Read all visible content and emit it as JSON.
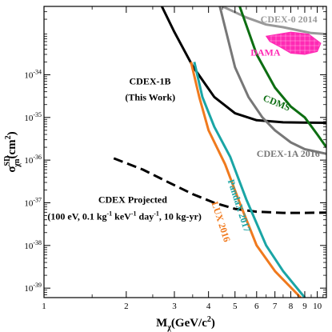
{
  "chart_data": {
    "type": "line",
    "xlabel": "M",
    "xlabel_sub": "χ",
    "xlabel_units": "(GeV/c",
    "xlabel_units_sup": "2",
    "xlabel_units_close": ")",
    "ylabel": "σ",
    "ylabel_sup": "SD",
    "ylabel_sub": "χn",
    "ylabel_units": "(cm",
    "ylabel_units_sup": "2",
    "ylabel_units_close": ")",
    "x_scale": "log",
    "y_scale": "log",
    "xlim": [
      1,
      10.8
    ],
    "ylim": [
      6e-40,
      4e-33
    ],
    "grid": false,
    "x_major_ticks": [
      {
        "value": 1,
        "label": "1"
      },
      {
        "value": 2,
        "label": "2"
      },
      {
        "value": 3,
        "label": "3"
      },
      {
        "value": 4,
        "label": "4"
      },
      {
        "value": 5,
        "label": "5"
      },
      {
        "value": 6,
        "label": "6"
      },
      {
        "value": 7,
        "label": "7"
      },
      {
        "value": 8,
        "label": "8"
      },
      {
        "value": 9,
        "label": "9"
      },
      {
        "value": 10,
        "label": "10"
      }
    ],
    "y_major_ticks": [
      {
        "value": 1e-39,
        "base": "10",
        "exp": "-39"
      },
      {
        "value": 1e-38,
        "base": "10",
        "exp": "-38"
      },
      {
        "value": 1e-37,
        "base": "10",
        "exp": "-37"
      },
      {
        "value": 1e-36,
        "base": "10",
        "exp": "-36"
      },
      {
        "value": 1e-35,
        "base": "10",
        "exp": "-35"
      },
      {
        "value": 1e-34,
        "base": "10",
        "exp": "-34"
      }
    ],
    "series": [
      {
        "name": "CDEX-1B",
        "color": "#000000",
        "style": "solid",
        "points": [
          [
            2.7,
            4e-33
          ],
          [
            3.0,
            1e-33
          ],
          [
            3.5,
            1.6e-34
          ],
          [
            4.2,
            3e-35
          ],
          [
            5.0,
            1.25e-35
          ],
          [
            6.0,
            8.6e-36
          ],
          [
            7.5,
            7.7e-36
          ],
          [
            9.0,
            7.6e-36
          ],
          [
            10.8,
            7.5e-36
          ]
        ]
      },
      {
        "name": "CDEX Projected",
        "color": "#000000",
        "style": "dashed",
        "points": [
          [
            1.8,
            1.1e-36
          ],
          [
            2.3,
            6e-37
          ],
          [
            2.8,
            3.2e-37
          ],
          [
            3.5,
            1.6e-37
          ],
          [
            4.2,
            1e-37
          ],
          [
            5.0,
            7.2e-38
          ],
          [
            6.0,
            6.2e-38
          ],
          [
            7.5,
            5.8e-38
          ],
          [
            9.0,
            5.8e-38
          ],
          [
            10.8,
            5.9e-38
          ]
        ]
      },
      {
        "name": "CDEX-0 2014",
        "color": "#999999",
        "style": "solid",
        "points": [
          [
            4.5,
            4e-33
          ],
          [
            5.5,
            2.2e-33
          ],
          [
            6.5,
            1.5e-33
          ],
          [
            7.5,
            1.3e-33
          ],
          [
            8.5,
            1.1e-33
          ],
          [
            9.5,
            9.5e-34
          ],
          [
            10.8,
            9e-34
          ]
        ]
      },
      {
        "name": "CDEX-1A 2016",
        "color": "#777777",
        "style": "solid",
        "points": [
          [
            4.4,
            4e-33
          ],
          [
            5.0,
            1.5e-34
          ],
          [
            5.6,
            3e-35
          ],
          [
            6.3,
            1e-35
          ],
          [
            7.0,
            5e-36
          ],
          [
            8.0,
            2.6e-36
          ],
          [
            9.0,
            1.8e-36
          ],
          [
            10.8,
            1.4e-36
          ]
        ]
      },
      {
        "name": "CDMS",
        "color": "#0d6e12",
        "style": "solid",
        "points": [
          [
            5.2,
            4e-33
          ],
          [
            6.0,
            3e-34
          ],
          [
            7.0,
            5e-35
          ],
          [
            8.0,
            1.8e-35
          ],
          [
            9.0,
            1e-35
          ],
          [
            10.0,
            4e-36
          ],
          [
            10.8,
            2e-36
          ]
        ]
      },
      {
        "name": "PandaX 2017",
        "color": "#1aa5a5",
        "style": "solid",
        "points": [
          [
            3.55,
            2e-34
          ],
          [
            3.8,
            3e-35
          ],
          [
            4.2,
            6e-36
          ],
          [
            4.8,
            1.2e-36
          ],
          [
            5.5,
            1.2e-37
          ],
          [
            6.5,
            1e-38
          ],
          [
            7.5,
            2.5e-39
          ],
          [
            9.0,
            6e-40
          ]
        ]
      },
      {
        "name": "LUX 2016",
        "color": "#f07a1e",
        "style": "solid",
        "points": [
          [
            3.45,
            2e-34
          ],
          [
            3.7,
            3e-35
          ],
          [
            4.0,
            5e-36
          ],
          [
            4.6,
            8e-37
          ],
          [
            5.2,
            1e-37
          ],
          [
            6.0,
            1e-38
          ],
          [
            7.0,
            2.5e-39
          ],
          [
            8.7,
            6e-40
          ]
        ]
      }
    ],
    "regions": [
      {
        "name": "DAMA",
        "fill": "#ff2ab4",
        "points": [
          [
            6.5,
            8e-34
          ],
          [
            8.0,
            1e-33
          ],
          [
            9.3,
            9e-34
          ],
          [
            10.3,
            5.5e-34
          ],
          [
            10.0,
            3.5e-34
          ],
          [
            9.0,
            3e-34
          ],
          [
            8.0,
            3.2e-34
          ],
          [
            7.3,
            4.5e-34
          ],
          [
            6.7,
            6e-34
          ]
        ]
      }
    ],
    "curve_labels": [
      {
        "text": "CDEX-0 2014",
        "color": "#999999",
        "x": 6.2,
        "y": 1.7e-33,
        "rotate": 0
      },
      {
        "text": "DAMA",
        "color": "#ff2ab4",
        "x": 5.7,
        "y": 2.8e-34,
        "rotate": 0
      },
      {
        "text": "CDMS",
        "color": "#0d6e12",
        "x": 6.3,
        "y": 2.5e-35,
        "rotate": 22
      },
      {
        "text": "CDEX-1A 2016",
        "color": "#777777",
        "x": 6.0,
        "y": 1.2e-36,
        "rotate": 0
      },
      {
        "text": "PandaX 2017",
        "color": "#1aa5a5",
        "x": 4.7,
        "y": 3.3e-37,
        "rotate": 72
      },
      {
        "text": "LUX 2016",
        "color": "#f07a1e",
        "x": 4.1,
        "y": 1e-37,
        "rotate": 72
      }
    ],
    "annotations": [
      {
        "text": "CDEX-1B",
        "x": 2.05,
        "y": 6e-35
      },
      {
        "text": "(This Work)",
        "x": 1.98,
        "y": 2.5e-35
      },
      {
        "text": "CDEX Projected",
        "x": 1.58,
        "y": 1e-37
      },
      {
        "parts": [
          "(100 eV, 0.1 kg",
          "-1",
          " keV",
          "-1",
          " day",
          "-1",
          ", 10 kg-yr)"
        ],
        "x": 1.03,
        "y": 4e-38
      }
    ]
  }
}
